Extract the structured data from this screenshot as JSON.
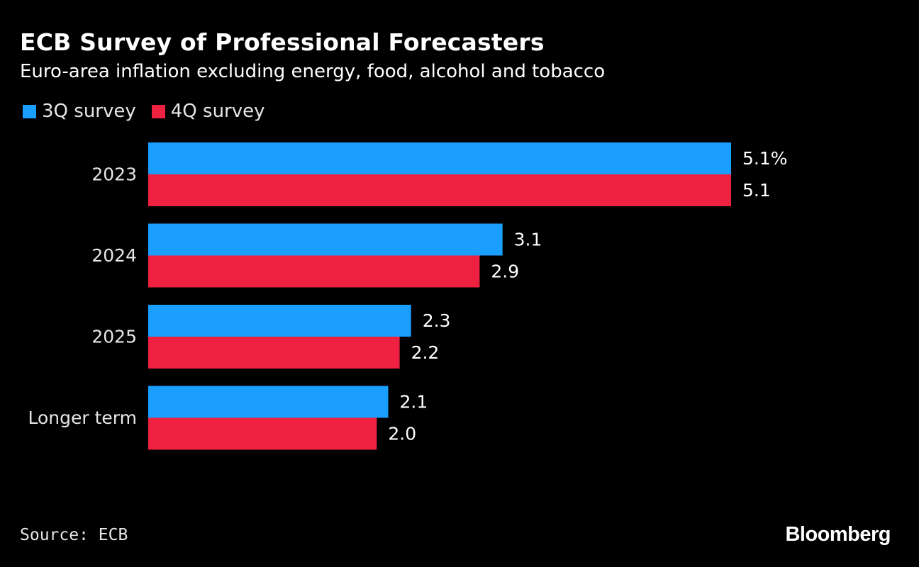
{
  "chart_data": {
    "type": "bar",
    "orientation": "horizontal",
    "title": "ECB Survey of Professional Forecasters",
    "subtitle": "Euro-area inflation excluding energy, food, alcohol and tobacco",
    "categories": [
      "2023",
      "2024",
      "2025",
      "Longer term"
    ],
    "series": [
      {
        "name": "3Q survey",
        "color": "#1a9fff",
        "values": [
          5.1,
          3.1,
          2.3,
          2.1
        ],
        "labels": [
          "5.1%",
          "3.1",
          "2.3",
          "2.1"
        ]
      },
      {
        "name": "4Q survey",
        "color": "#ee2140",
        "values": [
          5.1,
          2.9,
          2.2,
          2.0
        ],
        "labels": [
          "5.1",
          "2.9",
          "2.2",
          "2.0"
        ]
      }
    ],
    "xlim": [
      0,
      5.1
    ],
    "grid": false,
    "legend_position": "top-left"
  },
  "source": "Source: ECB",
  "logo": "Bloomberg"
}
